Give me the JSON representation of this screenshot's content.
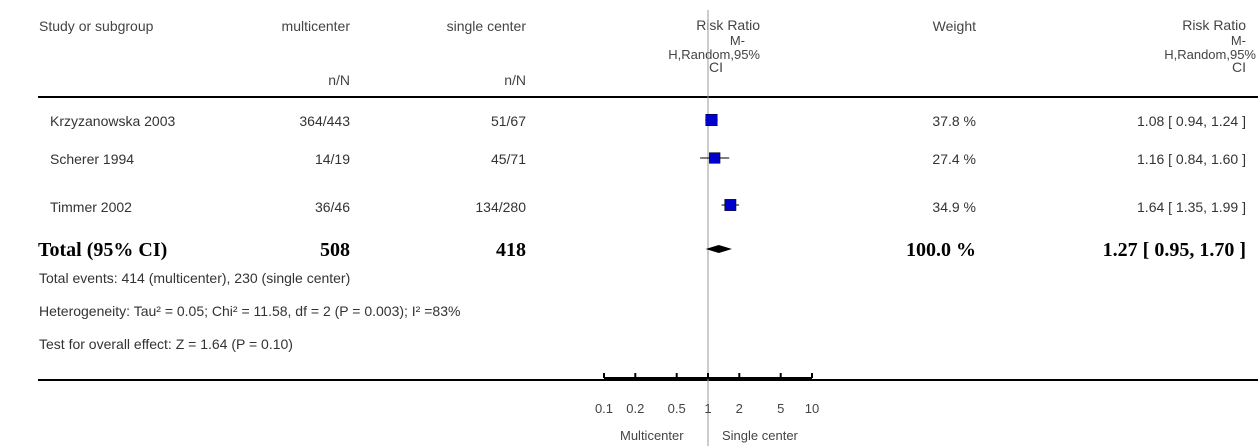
{
  "chart_data": {
    "type": "forest",
    "columns": {
      "study": "Study or subgroup",
      "group1": "multicenter",
      "group2": "single center",
      "plot_header": [
        "Risk Ratio",
        "M-",
        "H,Random,95%",
        "CI"
      ],
      "weight": "Weight",
      "effect_header": [
        "Risk Ratio",
        "M-",
        "H,Random,95%",
        "CI"
      ],
      "group1_sub": "n/N",
      "group2_sub": "n/N"
    },
    "studies": [
      {
        "name": "Krzyzanowska 2003",
        "g1": "364/443",
        "g2": "51/67",
        "weight_label": "37.8 %",
        "weight": 37.8,
        "effect_label": "1.08 [ 0.94, 1.24 ]",
        "rr": 1.08,
        "lo": 0.94,
        "hi": 1.24
      },
      {
        "name": "Scherer 1994",
        "g1": "14/19",
        "g2": "45/71",
        "weight_label": "27.4 %",
        "weight": 27.4,
        "effect_label": "1.16 [ 0.84, 1.60 ]",
        "rr": 1.16,
        "lo": 0.84,
        "hi": 1.6
      },
      {
        "name": "Timmer 2002",
        "g1": "36/46",
        "g2": "134/280",
        "weight_label": "34.9 %",
        "weight": 34.9,
        "effect_label": "1.64 [ 1.35, 1.99 ]",
        "rr": 1.64,
        "lo": 1.35,
        "hi": 1.99
      }
    ],
    "total": {
      "name": "Total (95% CI)",
      "g1": "508",
      "g2": "418",
      "weight_label": "100.0 %",
      "effect_label": "1.27 [ 0.95, 1.70 ]",
      "rr": 1.27,
      "lo": 0.95,
      "hi": 1.7
    },
    "footnotes": {
      "events": "Total events: 414 (multicenter), 230 (single center)",
      "heterogeneity": "Heterogeneity: Tau² = 0.05; Chi² = 11.58, df = 2 (P = 0.003); I² =83%",
      "overall": "Test for overall effect: Z = 1.64 (P = 0.10)"
    },
    "x_axis": {
      "scale": "log",
      "ticks": [
        0.1,
        0.2,
        0.5,
        1,
        2,
        5,
        10
      ],
      "tick_labels": [
        "0.1",
        "0.2",
        "0.5",
        "1",
        "2",
        "5",
        "10"
      ],
      "favours_left": "Multicenter",
      "favours_right": "Single center"
    },
    "colors": {
      "box": "#0000cc",
      "line": "#000000",
      "null_line": "#999999"
    }
  }
}
